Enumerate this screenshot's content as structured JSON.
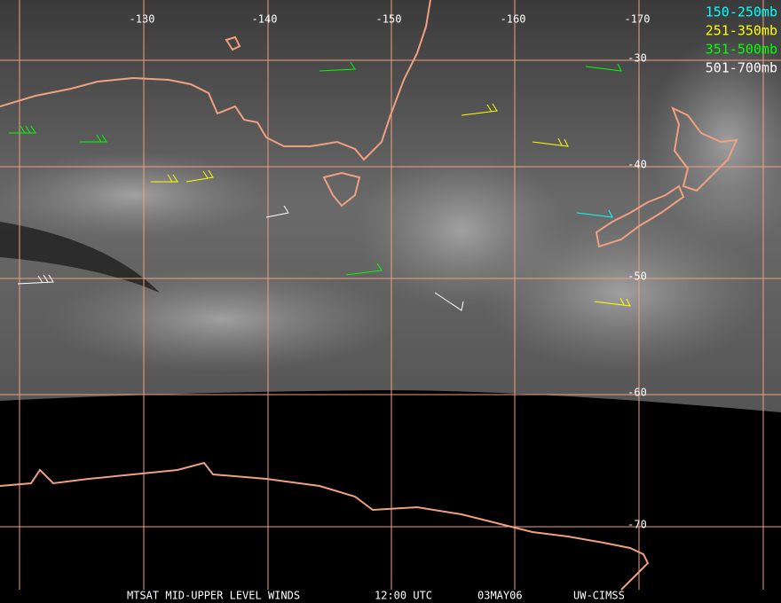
{
  "map": {
    "lon_labels": [
      "-130",
      "-140",
      "-150",
      "-160",
      "-170"
    ],
    "lat_labels": [
      "-30",
      "-40",
      "-50",
      "-60",
      "-70"
    ],
    "legend": [
      {
        "label": "150-250mb",
        "color": "#00ffff"
      },
      {
        "label": "251-350mb",
        "color": "#ffff00"
      },
      {
        "label": "351-500mb",
        "color": "#00ff00"
      },
      {
        "label": "501-700mb",
        "color": "#ffffff"
      }
    ],
    "footer": [
      "MTSAT MID-UPPER LEVEL WINDS",
      "12:00 UTC",
      "03MAY06",
      "UW-CIMSS"
    ]
  }
}
